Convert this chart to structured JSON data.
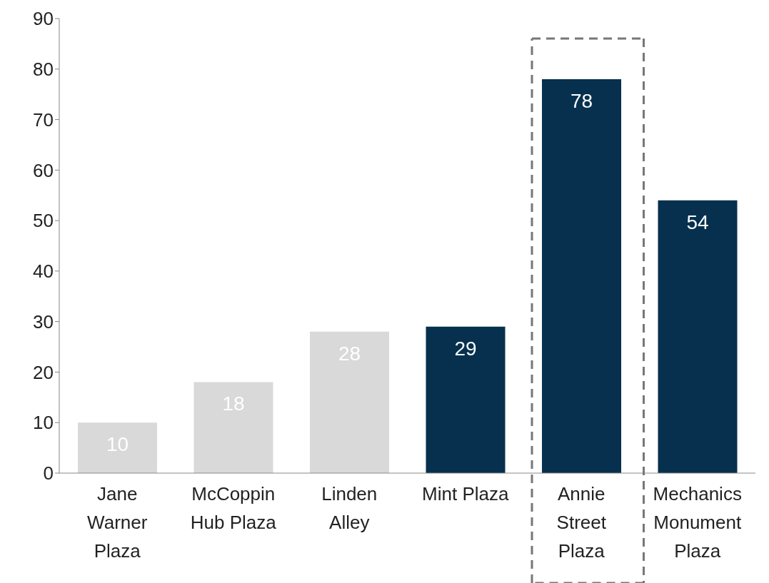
{
  "chart_data": {
    "type": "bar",
    "categories": [
      "Jane Warner Plaza",
      "McCoppin Hub Plaza",
      "Linden Alley",
      "Mint Plaza",
      "Annie Street Plaza",
      "Mechanics Monument Plaza"
    ],
    "values": [
      10,
      18,
      28,
      29,
      78,
      54
    ],
    "colors": [
      "#d9d9d9",
      "#d9d9d9",
      "#d9d9d9",
      "#06304e",
      "#06304e",
      "#06304e"
    ],
    "ylim": [
      0,
      90
    ],
    "yticks": [
      0,
      10,
      20,
      30,
      40,
      50,
      60,
      70,
      80,
      90
    ],
    "grid": false,
    "data_labels": true
  }
}
